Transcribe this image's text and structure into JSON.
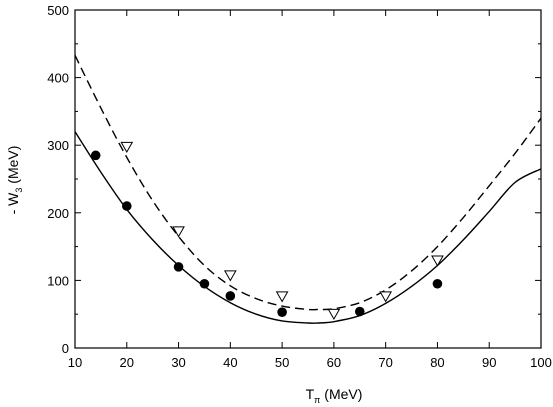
{
  "chart_data": {
    "type": "scatter",
    "xlabel_main": "T",
    "xlabel_sub": "π",
    "xlabel_unit": " (MeV)",
    "ylabel_main": "- W",
    "ylabel_sub": "3",
    "ylabel_unit": " (MeV)",
    "xlim": [
      10,
      100
    ],
    "ylim": [
      0,
      500
    ],
    "xticks": [
      10,
      20,
      30,
      40,
      50,
      60,
      70,
      80,
      90,
      100
    ],
    "yticks": [
      0,
      100,
      200,
      300,
      400,
      500
    ],
    "series": [
      {
        "marker": "filled-circle",
        "x": [
          14,
          20,
          30,
          35,
          40,
          50,
          65,
          80
        ],
        "y": [
          285,
          210,
          120,
          95,
          77,
          53,
          54,
          95
        ]
      },
      {
        "marker": "open-triangle-down",
        "x": [
          20,
          30,
          40,
          50,
          60,
          70,
          80
        ],
        "y": [
          298,
          173,
          108,
          77,
          51,
          77,
          130
        ]
      },
      {
        "line": "solid",
        "x": [
          10,
          15,
          20,
          25,
          30,
          35,
          40,
          45,
          50,
          55,
          57,
          60,
          65,
          70,
          75,
          80,
          85,
          90,
          95,
          100
        ],
        "y": [
          320,
          260,
          205,
          160,
          122,
          91,
          67,
          50,
          40,
          37,
          37,
          39,
          48,
          66,
          91,
          122,
          160,
          202,
          245,
          265
        ]
      },
      {
        "line": "dashed",
        "x": [
          10,
          15,
          20,
          25,
          30,
          35,
          40,
          45,
          50,
          55,
          57,
          60,
          65,
          70,
          75,
          80,
          85,
          90,
          95,
          100
        ],
        "y": [
          433,
          355,
          282,
          218,
          165,
          122,
          92,
          73,
          62,
          57,
          57,
          58,
          67,
          86,
          114,
          150,
          193,
          240,
          288,
          340
        ]
      }
    ]
  }
}
